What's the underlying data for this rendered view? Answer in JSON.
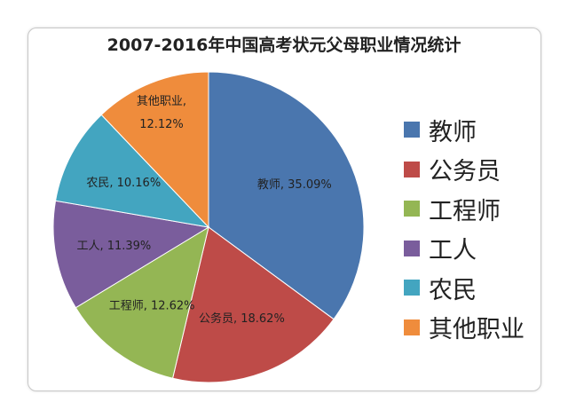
{
  "chart_data": {
    "type": "pie",
    "title": "2007-2016年中国高考状元父母职业情况统计",
    "categories": [
      "教师",
      "公务员",
      "工程师",
      "工人",
      "农民",
      "其他职业"
    ],
    "values": [
      35.09,
      18.62,
      12.62,
      11.39,
      10.16,
      12.12
    ],
    "data_labels": [
      "教师, 35.09%",
      "公务员, 18.62%",
      "工程师, 12.62%",
      "工人, 11.39%",
      "农民, 10.16%",
      "其他职业, 12.12%"
    ],
    "colors": [
      "#4A76AE",
      "#BE4B48",
      "#94B654",
      "#7A5D9C",
      "#43A5C0",
      "#EF8C3C"
    ],
    "legend_position": "right",
    "start_angle": "top, clockwise"
  }
}
